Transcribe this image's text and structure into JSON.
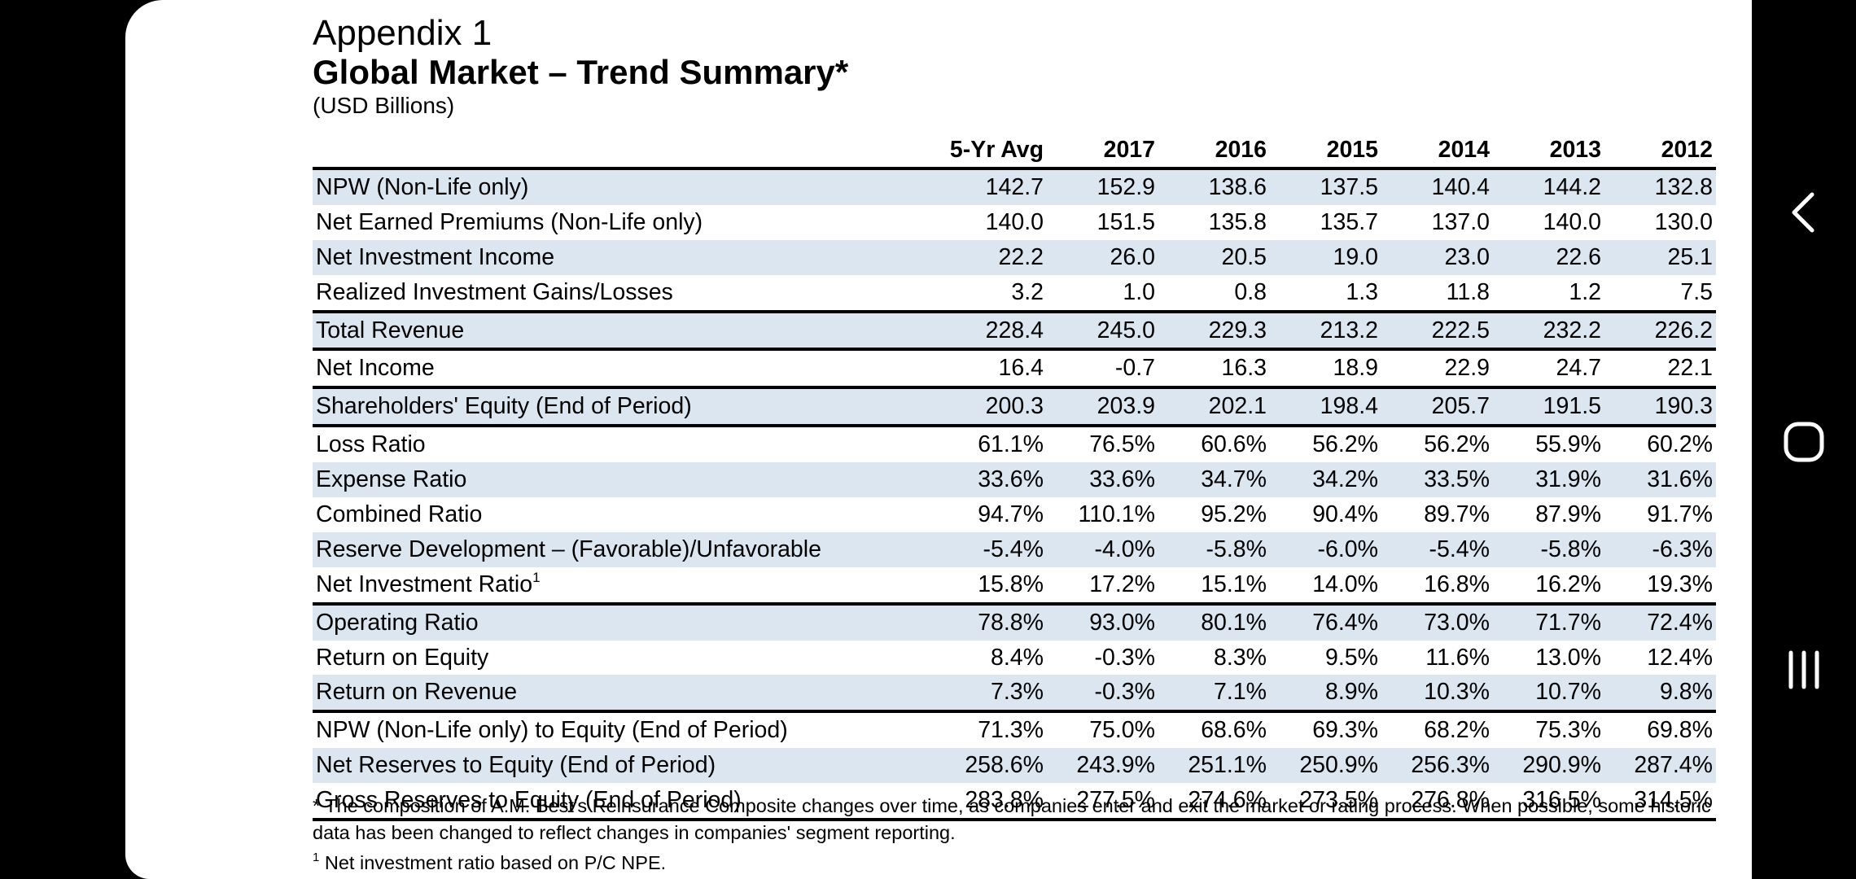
{
  "document": {
    "appendix": "Appendix 1",
    "title": "Global Market – Trend Summary*",
    "subtitle": "(USD Billions)"
  },
  "table": {
    "columns": [
      "5-Yr Avg",
      "2017",
      "2016",
      "2015",
      "2014",
      "2013",
      "2012"
    ],
    "rows": [
      {
        "label": "NPW (Non-Life only)",
        "values": [
          "142.7",
          "152.9",
          "138.6",
          "137.5",
          "140.4",
          "144.2",
          "132.8"
        ]
      },
      {
        "label": "Net Earned Premiums (Non-Life only)",
        "values": [
          "140.0",
          "151.5",
          "135.8",
          "135.7",
          "137.0",
          "140.0",
          "130.0"
        ]
      },
      {
        "label": "Net Investment Income",
        "values": [
          "22.2",
          "26.0",
          "20.5",
          "19.0",
          "23.0",
          "22.6",
          "25.1"
        ]
      },
      {
        "label": "Realized Investment Gains/Losses",
        "values": [
          "3.2",
          "1.0",
          "0.8",
          "1.3",
          "11.8",
          "1.2",
          "7.5"
        ]
      },
      {
        "label": "Total Revenue",
        "values": [
          "228.4",
          "245.0",
          "229.3",
          "213.2",
          "222.5",
          "232.2",
          "226.2"
        ]
      },
      {
        "label": "Net Income",
        "values": [
          "16.4",
          "-0.7",
          "16.3",
          "18.9",
          "22.9",
          "24.7",
          "22.1"
        ]
      },
      {
        "label": "Shareholders' Equity (End of Period)",
        "values": [
          "200.3",
          "203.9",
          "202.1",
          "198.4",
          "205.7",
          "191.5",
          "190.3"
        ]
      },
      {
        "label": "Loss Ratio",
        "values": [
          "61.1%",
          "76.5%",
          "60.6%",
          "56.2%",
          "56.2%",
          "55.9%",
          "60.2%"
        ]
      },
      {
        "label": "Expense Ratio",
        "values": [
          "33.6%",
          "33.6%",
          "34.7%",
          "34.2%",
          "33.5%",
          "31.9%",
          "31.6%"
        ]
      },
      {
        "label": "Combined Ratio",
        "values": [
          "94.7%",
          "110.1%",
          "95.2%",
          "90.4%",
          "89.7%",
          "87.9%",
          "91.7%"
        ]
      },
      {
        "label": "Reserve Development – (Favorable)/Unfavorable",
        "values": [
          "-5.4%",
          "-4.0%",
          "-5.8%",
          "-6.0%",
          "-5.4%",
          "-5.8%",
          "-6.3%"
        ]
      },
      {
        "label": "Net Investment Ratio",
        "sup": "1",
        "values": [
          "15.8%",
          "17.2%",
          "15.1%",
          "14.0%",
          "16.8%",
          "16.2%",
          "19.3%"
        ]
      },
      {
        "label": "Operating Ratio",
        "values": [
          "78.8%",
          "93.0%",
          "80.1%",
          "76.4%",
          "73.0%",
          "71.7%",
          "72.4%"
        ]
      },
      {
        "label": "Return on Equity",
        "values": [
          "8.4%",
          "-0.3%",
          "8.3%",
          "9.5%",
          "11.6%",
          "13.0%",
          "12.4%"
        ]
      },
      {
        "label": "Return on Revenue",
        "values": [
          "7.3%",
          "-0.3%",
          "7.1%",
          "8.9%",
          "10.3%",
          "10.7%",
          "9.8%"
        ]
      },
      {
        "label": "NPW (Non-Life only) to Equity (End of Period)",
        "values": [
          "71.3%",
          "75.0%",
          "68.6%",
          "69.3%",
          "68.2%",
          "75.3%",
          "69.8%"
        ]
      },
      {
        "label": "Net Reserves to Equity (End of Period)",
        "values": [
          "258.6%",
          "243.9%",
          "251.1%",
          "250.9%",
          "256.3%",
          "290.9%",
          "287.4%"
        ]
      },
      {
        "label": "Gross Reserves to Equity (End of Period)",
        "values": [
          "283.8%",
          "277.5%",
          "274.6%",
          "273.5%",
          "276.8%",
          "316.5%",
          "314.5%"
        ]
      }
    ]
  },
  "notes": {
    "asterisk": "* The composition of A.M. Best's Reinsurance Composite changes over time, as companies enter and exit the market or rating process. When possible, some historic data has been changed to reflect changes in companies' segment reporting.",
    "footnote_marker": "1",
    "footnote": " Net investment ratio based on P/C NPE."
  },
  "navigation": {
    "icons": [
      "back-icon",
      "home-icon",
      "recent-apps-icon"
    ]
  },
  "colors": {
    "row_shade": "#dce6f1",
    "page_bg": "#ffffff",
    "frame_bg": "#000000",
    "nav_icon": "#ffffff"
  }
}
